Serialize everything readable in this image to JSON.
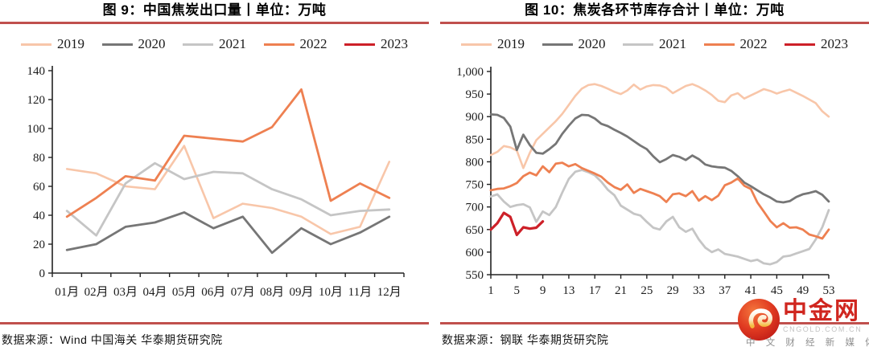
{
  "chart_data": [
    {
      "type": "line",
      "title": "图 9：中国焦炭出口量丨单位：万吨",
      "xlabel": "",
      "ylabel": "",
      "ylim": [
        0,
        140
      ],
      "ytick_step": 20,
      "grid": false,
      "legend_position": "top",
      "categories": [
        "01月",
        "02月",
        "03月",
        "04月",
        "05月",
        "06月",
        "07月",
        "08月",
        "09月",
        "10月",
        "11月",
        "12月"
      ],
      "series": [
        {
          "name": "2019",
          "color": "#f8c6a9",
          "width": 2.6,
          "values": [
            72,
            69,
            60,
            58,
            88,
            38,
            48,
            45,
            39,
            27,
            32,
            77
          ]
        },
        {
          "name": "2020",
          "color": "#767676",
          "width": 2.8,
          "values": [
            16,
            20,
            32,
            35,
            42,
            31,
            39,
            14,
            31,
            20,
            28,
            39
          ]
        },
        {
          "name": "2021",
          "color": "#c5c5c5",
          "width": 2.8,
          "values": [
            43,
            26,
            62,
            76,
            65,
            70,
            69,
            58,
            51,
            40,
            43,
            44
          ]
        },
        {
          "name": "2022",
          "color": "#ee8051",
          "width": 2.8,
          "values": [
            39,
            52,
            67,
            64,
            95,
            93,
            91,
            101,
            127,
            50,
            62,
            52
          ]
        },
        {
          "name": "2023",
          "color": "#cd2028",
          "width": 3.2,
          "values": []
        }
      ],
      "source": "数据来源：Wind 中国海关 华泰期货研究院"
    },
    {
      "type": "line",
      "title": "图 10：焦炭各环节库存合计丨单位：万吨",
      "xlabel": "",
      "ylabel": "",
      "ylim": [
        550,
        1000
      ],
      "ytick_step": 50,
      "grid": false,
      "legend_position": "top",
      "x_start": 1,
      "xticks": [
        1,
        5,
        9,
        13,
        17,
        21,
        25,
        29,
        33,
        37,
        41,
        45,
        49,
        53
      ],
      "series": [
        {
          "name": "2019",
          "color": "#f8c6a9",
          "width": 2.6,
          "values": [
            815,
            822,
            835,
            832,
            825,
            786,
            820,
            848,
            862,
            876,
            890,
            906,
            926,
            946,
            962,
            970,
            972,
            968,
            962,
            955,
            950,
            958,
            971,
            960,
            967,
            970,
            969,
            964,
            952,
            960,
            968,
            972,
            966,
            958,
            948,
            935,
            932,
            947,
            952,
            940,
            947,
            954,
            961,
            957,
            951,
            956,
            960,
            953,
            946,
            938,
            930,
            912,
            900
          ]
        },
        {
          "name": "2020",
          "color": "#767676",
          "width": 2.8,
          "values": [
            905,
            904,
            897,
            878,
            826,
            860,
            837,
            820,
            818,
            828,
            840,
            862,
            880,
            896,
            904,
            903,
            896,
            884,
            879,
            871,
            864,
            856,
            846,
            836,
            828,
            812,
            799,
            806,
            815,
            811,
            804,
            814,
            806,
            794,
            790,
            788,
            787,
            780,
            768,
            754,
            746,
            737,
            728,
            721,
            712,
            710,
            713,
            722,
            728,
            731,
            735,
            727,
            712
          ]
        },
        {
          "name": "2021",
          "color": "#c5c5c5",
          "width": 2.8,
          "values": [
            723,
            728,
            712,
            700,
            704,
            706,
            699,
            667,
            690,
            682,
            700,
            732,
            762,
            778,
            782,
            777,
            770,
            756,
            738,
            726,
            703,
            694,
            685,
            681,
            667,
            654,
            650,
            668,
            678,
            655,
            645,
            652,
            628,
            610,
            600,
            606,
            596,
            593,
            590,
            585,
            580,
            583,
            575,
            573,
            578,
            590,
            592,
            597,
            602,
            607,
            628,
            655,
            693
          ]
        },
        {
          "name": "2022",
          "color": "#ee8051",
          "width": 2.8,
          "values": [
            737,
            740,
            741,
            746,
            753,
            768,
            776,
            770,
            790,
            777,
            796,
            798,
            790,
            795,
            786,
            780,
            774,
            767,
            754,
            744,
            738,
            750,
            731,
            740,
            735,
            730,
            724,
            711,
            728,
            730,
            724,
            735,
            714,
            724,
            715,
            725,
            748,
            754,
            763,
            747,
            740,
            710,
            690,
            669,
            655,
            664,
            654,
            655,
            650,
            639,
            635,
            630,
            650
          ]
        },
        {
          "name": "2023",
          "color": "#cd2028",
          "width": 3.2,
          "values": [
            650,
            664,
            687,
            678,
            638,
            655,
            652,
            654,
            668
          ]
        }
      ],
      "source": "数据来源：钢联 华泰期货研究院"
    }
  ],
  "watermark": {
    "brand": "中金网",
    "domain": "CNGOLD.COM.CN",
    "tagline": "中 文 财 经 新 媒 体",
    "icon": "auspicious-cloud-icon",
    "accent_color": "#d0261f"
  },
  "style_colors": {
    "title_rule": "#c0504d",
    "source_rule": "#c0504d"
  }
}
